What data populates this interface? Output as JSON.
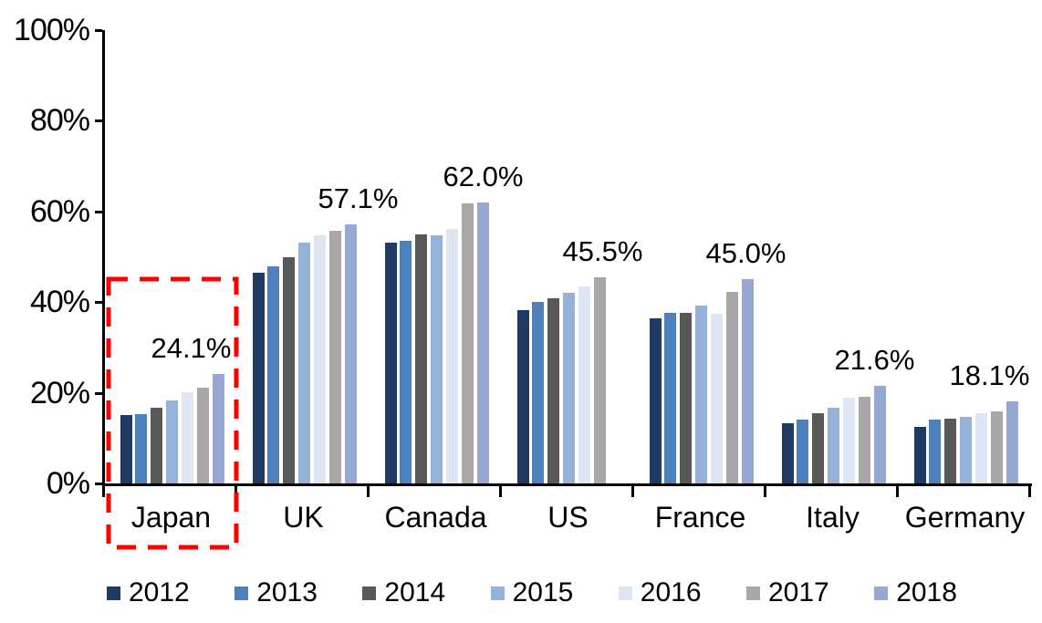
{
  "chart_data": {
    "type": "bar",
    "title": "",
    "categories": [
      "Japan",
      "UK",
      "Canada",
      "US",
      "France",
      "Italy",
      "Germany"
    ],
    "series": [
      {
        "name": "2012",
        "color": "#1F3A63",
        "values": [
          15.0,
          46.4,
          53.1,
          38.2,
          36.4,
          13.2,
          12.5
        ]
      },
      {
        "name": "2013",
        "color": "#4E80BD",
        "values": [
          15.2,
          47.9,
          53.5,
          40.0,
          37.7,
          14.1,
          14.0
        ]
      },
      {
        "name": "2014",
        "color": "#595959",
        "values": [
          16.7,
          49.9,
          54.9,
          40.9,
          37.7,
          15.4,
          14.3
        ]
      },
      {
        "name": "2015",
        "color": "#95B3D9",
        "values": [
          18.3,
          53.2,
          54.7,
          42.1,
          39.3,
          16.8,
          14.7
        ]
      },
      {
        "name": "2016",
        "color": "#DDE6F2",
        "values": [
          20.2,
          54.8,
          56.2,
          43.5,
          37.4,
          19.0,
          15.4
        ]
      },
      {
        "name": "2017",
        "color": "#A9A7A7",
        "values": [
          21.2,
          55.8,
          61.7,
          45.5,
          42.3,
          19.2,
          15.9
        ]
      },
      {
        "name": "2018",
        "color": "#97A8D2",
        "values": [
          24.1,
          57.1,
          62.0,
          null,
          45.0,
          21.6,
          18.1
        ]
      }
    ],
    "data_labels": [
      "24.1%",
      "57.1%",
      "62.0%",
      "45.5%",
      "45.0%",
      "21.6%",
      "18.1%"
    ],
    "y_axis_tick_labels": [
      "0%",
      "20%",
      "40%",
      "60%",
      "80%",
      "100%"
    ],
    "ylim": [
      0,
      100
    ],
    "grid": false,
    "legend_position": "bottom",
    "legend_entries": [
      "2012",
      "2013",
      "2014",
      "2015",
      "2016",
      "2017",
      "2018"
    ],
    "annotation": {
      "type": "dashed-box",
      "target_category": "Japan",
      "color": "#FF0000"
    },
    "axis_color": "#000000",
    "label_dx": [
      22,
      60,
      52,
      38,
      50,
      46,
      27
    ]
  }
}
